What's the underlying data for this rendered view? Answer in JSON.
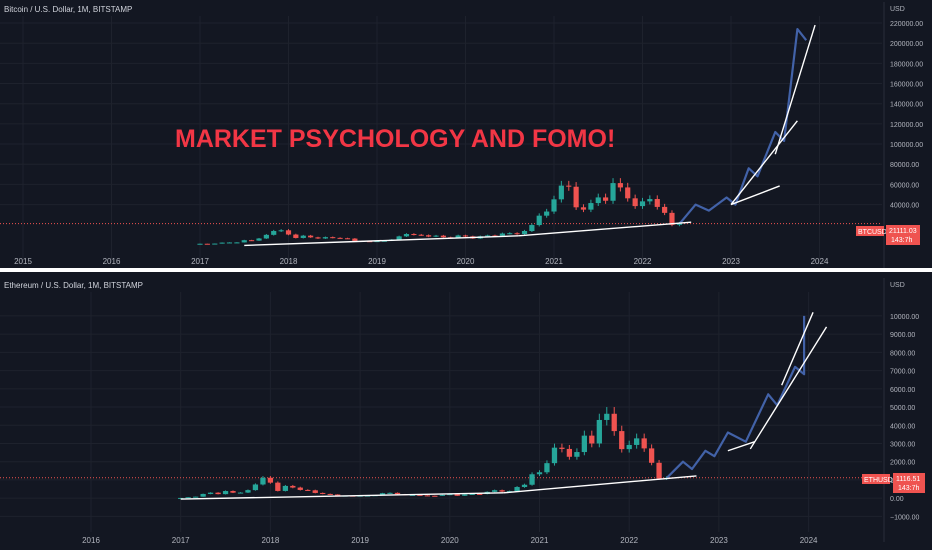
{
  "colors": {
    "background": "#131722",
    "grid": "#1e222d",
    "up": "#26a69a",
    "down": "#ef5350",
    "projection": "#4262a8",
    "trendline": "#ffffff",
    "annotation": "#f23645"
  },
  "annotation": "MARKET PSYCHOLOGY AND FOMO!",
  "chart_data": [
    {
      "type": "candlestick",
      "symbol_header": "Bitcoin / U.S. Dollar, 1M, BITSTAMP",
      "currency": "USD",
      "price_label": "BTCUSD",
      "last_price": "21111.03",
      "countdown": "143:7h",
      "x_ticks": [
        "2015",
        "2016",
        "2017",
        "2018",
        "2019",
        "2020",
        "2021",
        "2022",
        "2023",
        "2024"
      ],
      "y_ticks": [
        "40000.00",
        "60000.00",
        "80000.00",
        "100000.00",
        "120000.00",
        "140000.00",
        "160000.00",
        "180000.00",
        "200000.00",
        "220000.00"
      ],
      "ylim": [
        -8000,
        222000
      ],
      "candles_monthly": [
        [
          2017.0,
          970,
          1180
        ],
        [
          2017.083,
          1180,
          1080
        ],
        [
          2017.167,
          1080,
          1350
        ],
        [
          2017.25,
          1350,
          2300
        ],
        [
          2017.333,
          2300,
          2450
        ],
        [
          2017.417,
          2450,
          2500
        ],
        [
          2017.5,
          2500,
          4700
        ],
        [
          2017.583,
          4700,
          4300
        ],
        [
          2017.667,
          4300,
          6400
        ],
        [
          2017.75,
          6400,
          10000
        ],
        [
          2017.833,
          10000,
          13800
        ],
        [
          2017.917,
          13800,
          14500
        ],
        [
          2018.0,
          14500,
          10300
        ],
        [
          2018.083,
          10300,
          6900
        ],
        [
          2018.167,
          6900,
          9200
        ],
        [
          2018.25,
          9200,
          7500
        ],
        [
          2018.333,
          7500,
          6400
        ],
        [
          2018.417,
          6400,
          7700
        ],
        [
          2018.5,
          7700,
          7000
        ],
        [
          2018.583,
          7000,
          6600
        ],
        [
          2018.667,
          6600,
          6300
        ],
        [
          2018.75,
          6300,
          4000
        ],
        [
          2018.833,
          4000,
          3700
        ],
        [
          2018.917,
          3700,
          3400
        ],
        [
          2019.0,
          3400,
          3800
        ],
        [
          2019.083,
          3800,
          4100
        ],
        [
          2019.167,
          4100,
          5300
        ],
        [
          2019.25,
          5300,
          8500
        ],
        [
          2019.333,
          8500,
          10800
        ],
        [
          2019.417,
          10800,
          10100
        ],
        [
          2019.5,
          10100,
          9600
        ],
        [
          2019.583,
          9600,
          8300
        ],
        [
          2019.667,
          8300,
          9200
        ],
        [
          2019.75,
          9200,
          7600
        ],
        [
          2019.833,
          7600,
          7200
        ],
        [
          2019.917,
          7200,
          9400
        ],
        [
          2020.0,
          9400,
          8500
        ],
        [
          2020.083,
          8500,
          6400
        ],
        [
          2020.167,
          6400,
          8600
        ],
        [
          2020.25,
          8600,
          9400
        ],
        [
          2020.333,
          9400,
          9100
        ],
        [
          2020.417,
          9100,
          11300
        ],
        [
          2020.5,
          11300,
          11600
        ],
        [
          2020.583,
          11600,
          10800
        ],
        [
          2020.667,
          10800,
          13800
        ],
        [
          2020.75,
          13800,
          19700
        ],
        [
          2020.833,
          19700,
          29000
        ],
        [
          2020.917,
          29000,
          33100
        ],
        [
          2021.0,
          33100,
          45200
        ],
        [
          2021.083,
          45200,
          58800
        ],
        [
          2021.167,
          58800,
          57700
        ],
        [
          2021.25,
          57700,
          37300
        ],
        [
          2021.333,
          37300,
          35000
        ],
        [
          2021.417,
          35000,
          41500
        ],
        [
          2021.5,
          41500,
          47100
        ],
        [
          2021.583,
          47100,
          43800
        ],
        [
          2021.667,
          43800,
          61300
        ],
        [
          2021.75,
          61300,
          57000
        ],
        [
          2021.833,
          57000,
          46200
        ],
        [
          2021.917,
          46200,
          38500
        ],
        [
          2022.0,
          38500,
          43200
        ],
        [
          2022.083,
          43200,
          45500
        ],
        [
          2022.167,
          45500,
          37700
        ],
        [
          2022.25,
          37700,
          31800
        ],
        [
          2022.333,
          31800,
          19900
        ],
        [
          2022.417,
          19900,
          21111
        ]
      ],
      "projection": [
        [
          2022.42,
          21111
        ],
        [
          2022.6,
          40000
        ],
        [
          2022.75,
          34000
        ],
        [
          2022.95,
          47000
        ],
        [
          2023.05,
          40000
        ],
        [
          2023.2,
          76000
        ],
        [
          2023.3,
          68000
        ],
        [
          2023.5,
          112000
        ],
        [
          2023.6,
          103000
        ],
        [
          2023.75,
          214000
        ],
        [
          2023.85,
          203000
        ]
      ],
      "trendlines": [
        [
          [
            2017.5,
            -500
          ],
          [
            2020.6,
            9000
          ]
        ],
        [
          [
            2020.6,
            9000
          ],
          [
            2022.55,
            22500
          ]
        ],
        [
          [
            2023.0,
            40000
          ],
          [
            2023.55,
            58500
          ]
        ],
        [
          [
            2023.0,
            40000
          ],
          [
            2023.75,
            123000
          ]
        ],
        [
          [
            2023.5,
            90000
          ],
          [
            2023.95,
            218000
          ]
        ]
      ]
    },
    {
      "type": "candlestick",
      "symbol_header": "Ethereum / U.S. Dollar, 1M, BITSTAMP",
      "currency": "USD",
      "price_label": "ETHUSD",
      "last_price": "1116.51",
      "countdown": "143:7h",
      "x_ticks": [
        "2016",
        "2017",
        "2018",
        "2019",
        "2020",
        "2021",
        "2022",
        "2023",
        "2024"
      ],
      "y_ticks": [
        "10000.00",
        "9000.00",
        "8000.00",
        "7000.00",
        "6000.00",
        "5000.00",
        "4000.00",
        "3000.00",
        "2000.00",
        "1000.00",
        "0.00",
        "−1000.00"
      ],
      "ylim": [
        -1200,
        10600
      ],
      "candles_monthly": [
        [
          2017.0,
          8,
          11
        ],
        [
          2017.083,
          11,
          50
        ],
        [
          2017.167,
          50,
          80
        ],
        [
          2017.25,
          80,
          230
        ],
        [
          2017.333,
          230,
          300
        ],
        [
          2017.417,
          300,
          220
        ],
        [
          2017.5,
          220,
          390
        ],
        [
          2017.583,
          390,
          300
        ],
        [
          2017.667,
          300,
          305
        ],
        [
          2017.75,
          305,
          440
        ],
        [
          2017.833,
          440,
          750
        ],
        [
          2017.917,
          750,
          1120
        ],
        [
          2018.0,
          1120,
          850
        ],
        [
          2018.083,
          850,
          395
        ],
        [
          2018.167,
          395,
          670
        ],
        [
          2018.25,
          670,
          580
        ],
        [
          2018.333,
          580,
          450
        ],
        [
          2018.417,
          450,
          430
        ],
        [
          2018.5,
          430,
          285
        ],
        [
          2018.583,
          285,
          230
        ],
        [
          2018.667,
          230,
          200
        ],
        [
          2018.75,
          200,
          110
        ],
        [
          2018.833,
          110,
          135
        ],
        [
          2018.917,
          135,
          105
        ],
        [
          2019.0,
          105,
          135
        ],
        [
          2019.083,
          135,
          140
        ],
        [
          2019.167,
          140,
          160
        ],
        [
          2019.25,
          160,
          270
        ],
        [
          2019.333,
          270,
          290
        ],
        [
          2019.417,
          290,
          215
        ],
        [
          2019.5,
          215,
          170
        ],
        [
          2019.583,
          170,
          180
        ],
        [
          2019.667,
          180,
          150
        ],
        [
          2019.75,
          150,
          130
        ],
        [
          2019.833,
          130,
          128
        ],
        [
          2019.917,
          128,
          180
        ],
        [
          2020.0,
          180,
          220
        ],
        [
          2020.083,
          220,
          130
        ],
        [
          2020.167,
          130,
          205
        ],
        [
          2020.25,
          205,
          230
        ],
        [
          2020.333,
          230,
          225
        ],
        [
          2020.417,
          225,
          345
        ],
        [
          2020.5,
          345,
          435
        ],
        [
          2020.583,
          435,
          360
        ],
        [
          2020.667,
          360,
          385
        ],
        [
          2020.75,
          385,
          610
        ],
        [
          2020.833,
          610,
          735
        ],
        [
          2020.917,
          735,
          1310
        ],
        [
          2021.0,
          1310,
          1420
        ],
        [
          2021.083,
          1420,
          1920
        ],
        [
          2021.167,
          1920,
          2770
        ],
        [
          2021.25,
          2770,
          2700
        ],
        [
          2021.333,
          2700,
          2270
        ],
        [
          2021.417,
          2270,
          2530
        ],
        [
          2021.5,
          2530,
          3430
        ],
        [
          2021.583,
          3430,
          3000
        ],
        [
          2021.667,
          3000,
          4290
        ],
        [
          2021.75,
          4290,
          4630
        ],
        [
          2021.833,
          4630,
          3680
        ],
        [
          2021.917,
          3680,
          2690
        ],
        [
          2022.0,
          2690,
          2920
        ],
        [
          2022.083,
          2920,
          3280
        ],
        [
          2022.167,
          3280,
          2730
        ],
        [
          2022.25,
          2730,
          1940
        ],
        [
          2022.333,
          1940,
          1070
        ],
        [
          2022.417,
          1070,
          1116
        ]
      ],
      "projection": [
        [
          2022.42,
          1116
        ],
        [
          2022.6,
          2000
        ],
        [
          2022.7,
          1600
        ],
        [
          2022.85,
          2600
        ],
        [
          2022.95,
          2300
        ],
        [
          2023.1,
          3600
        ],
        [
          2023.3,
          3100
        ],
        [
          2023.55,
          5700
        ],
        [
          2023.65,
          5100
        ],
        [
          2023.85,
          7200
        ],
        [
          2023.95,
          6800
        ],
        [
          2023.95,
          10000
        ]
      ],
      "trendlines": [
        [
          [
            2017.0,
            -50
          ],
          [
            2020.6,
            290
          ]
        ],
        [
          [
            2020.6,
            290
          ],
          [
            2022.75,
            1220
          ]
        ],
        [
          [
            2023.1,
            2600
          ],
          [
            2023.4,
            3100
          ]
        ],
        [
          [
            2023.35,
            2700
          ],
          [
            2024.2,
            9400
          ]
        ],
        [
          [
            2023.7,
            6200
          ],
          [
            2024.05,
            10200
          ]
        ]
      ]
    }
  ]
}
